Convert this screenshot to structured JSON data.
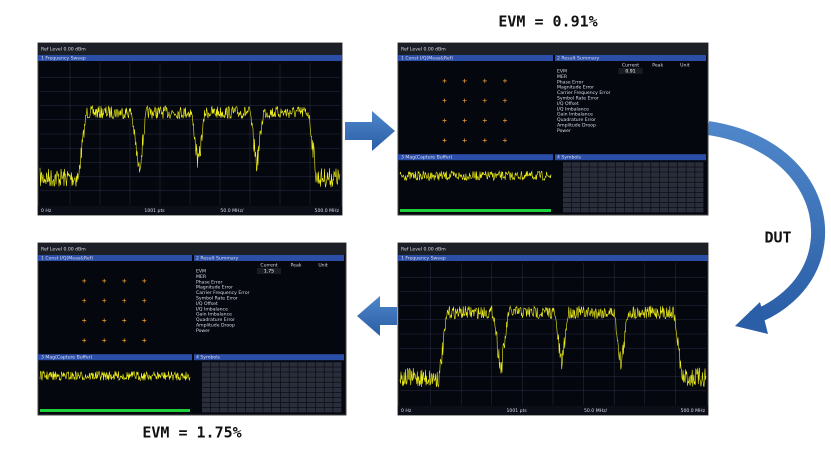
{
  "evm_top": "EVM = 0.91%",
  "evm_bottom": "EVM = 1.75%",
  "dut": "DUT",
  "spectrum": {
    "ref": "Ref Level 0.00 dBm",
    "window": "1 Frequency Sweep",
    "start": "0 Hz",
    "points": "1001 pts",
    "span": "50.0 MHz/",
    "stop": "500.0 MHz"
  },
  "demod": {
    "ref": "Ref Level 0.00 dBm",
    "const": "1 Const I/Q(Meas&Ref)",
    "summary": "2 Result Summary",
    "capture": "3 Mag(Capture Buffer)",
    "symbols": "4 Symbols",
    "columns": [
      "Current",
      "Peak",
      "Unit"
    ],
    "rows": [
      "EVM",
      "MER",
      "Phase Error",
      "Magnitude Error",
      "Carrier Frequency Error",
      "Symbol Rate Error",
      "I/Q Offset",
      "I/Q Imbalance",
      "Gain Imbalance",
      "Quadrature Error",
      "Amplitude Droop",
      "Power"
    ],
    "evm_rms_top": "0.91",
    "evm_rms_bottom": "1.75"
  }
}
